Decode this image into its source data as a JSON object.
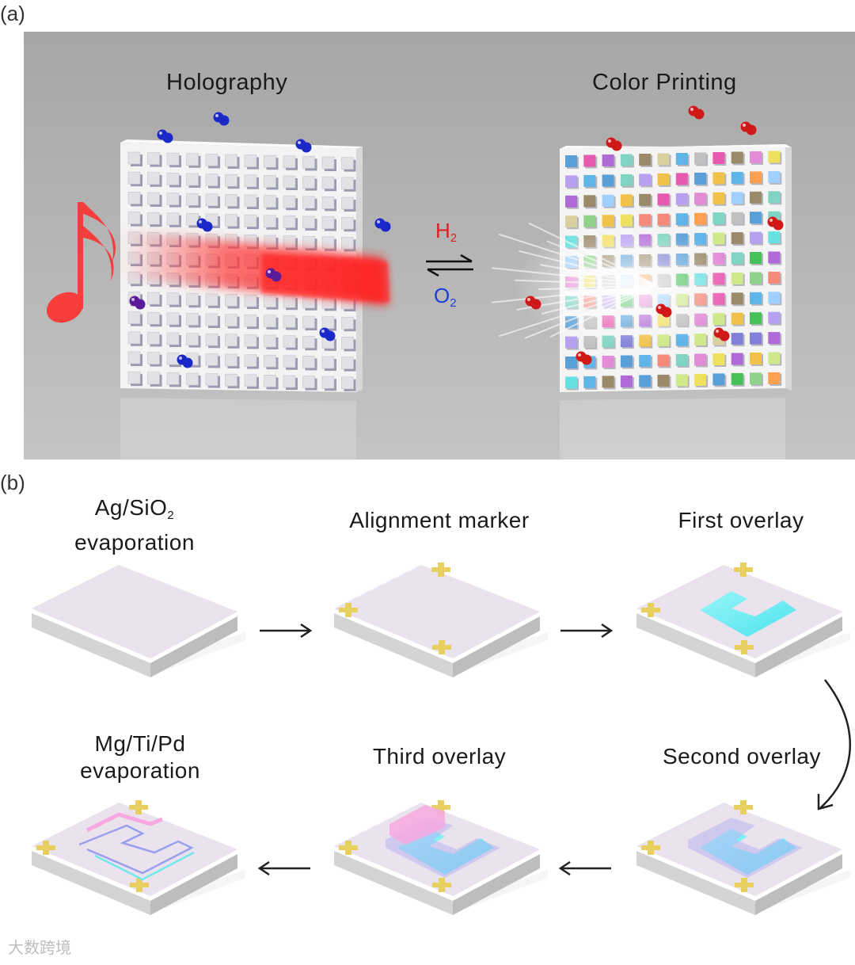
{
  "panel_a": {
    "label": "(a)",
    "left_title": "Holography",
    "right_title": "Color Printing",
    "h2": {
      "symbol": "H",
      "sub": "2",
      "color": "#e02020"
    },
    "o2": {
      "symbol": "O",
      "sub": "2",
      "color": "#1a3fd6"
    },
    "colors": {
      "background": "#a9a9a9",
      "hydrogen_ball": "#1a28c8",
      "oxygen_ball": "#d01818",
      "laser": "#ff2a2a"
    }
  },
  "panel_b": {
    "label": "(b)",
    "steps": [
      {
        "line1": "Ag/SiO",
        "sub": "2",
        "line2": "evaporation"
      },
      {
        "line1": "Alignment marker"
      },
      {
        "line1": "First overlay"
      },
      {
        "line1": "Second overlay"
      },
      {
        "line1": "Third overlay"
      },
      {
        "line1": "Mg/Ti/Pd",
        "line2": "evaporation"
      }
    ],
    "colors": {
      "marker": "#e8d060",
      "first": "#66f0f4",
      "second": "#b8b4f4",
      "third": "#f6a8e0"
    }
  },
  "watermark": "大数跨境"
}
